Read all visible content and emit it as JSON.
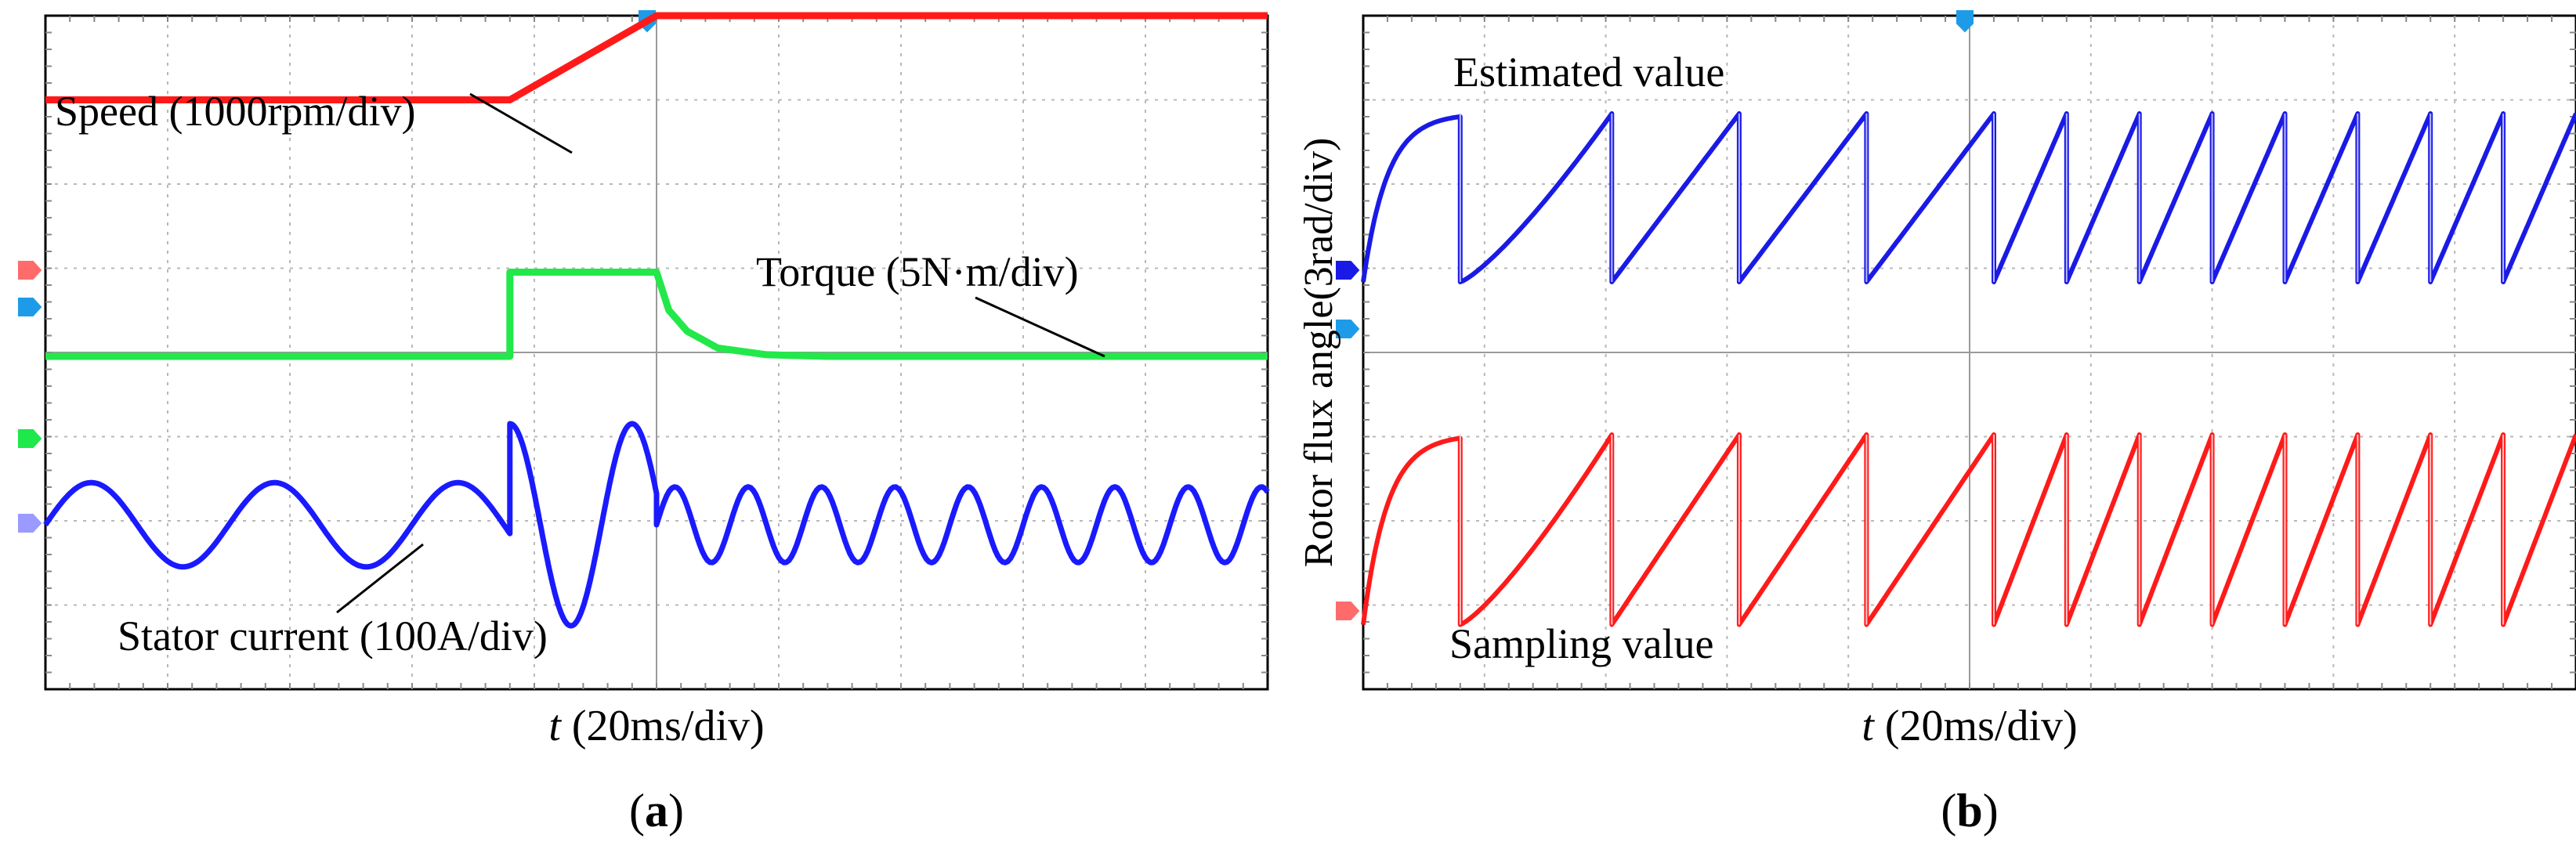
{
  "figure": {
    "panel_a_label": "a",
    "panel_b_label": "b"
  },
  "colors": {
    "speed": "#ff1a1a",
    "torque": "#22e84a",
    "current": "#1a1aff",
    "estimated": "#1a1ae6",
    "sampling": "#ff1a1a",
    "grid": "#b8b8b8",
    "marker_red": "#ff6b6b",
    "marker_blue": "#1e9be8",
    "marker_green": "#1ee84a",
    "marker_lavender": "#9a9aff"
  },
  "chart_data": [
    {
      "type": "line",
      "panel": "a",
      "xlabel_italic": "t",
      "xlabel": " (20ms/div)",
      "x_unit": "ms",
      "xlim": [
        0,
        200
      ],
      "grid": true,
      "divisions": {
        "x": 10,
        "y": 8
      },
      "annotations": [
        {
          "text": "Speed (1000rpm/div)",
          "series": "speed"
        },
        {
          "text": "Torque (5N·m/div)",
          "series": "torque"
        },
        {
          "text": "Stator current (100A/div)",
          "series": "stator_current"
        }
      ],
      "series": [
        {
          "id": "speed",
          "name": "Speed",
          "unit": "div",
          "points": [
            [
              0,
              1.0
            ],
            [
              76,
              1.0
            ],
            [
              100,
              2.0
            ],
            [
              200,
              2.0
            ]
          ]
        },
        {
          "id": "torque",
          "name": "Torque",
          "unit": "div",
          "points": [
            [
              0,
              0
            ],
            [
              76,
              0
            ],
            [
              76,
              1.0
            ],
            [
              100,
              1.0
            ],
            [
              102,
              0.55
            ],
            [
              105,
              0.3
            ],
            [
              110,
              0.1
            ],
            [
              118,
              0.02
            ],
            [
              128,
              0
            ],
            [
              200,
              0
            ]
          ]
        },
        {
          "id": "stator_current",
          "name": "Stator current",
          "unit": "div",
          "segments": [
            {
              "t_start": 0,
              "t_end": 76,
              "amplitude": 0.5,
              "period_ms": 30,
              "phase_deg": 0
            },
            {
              "t_start": 76,
              "t_end": 100,
              "amplitude": 1.2,
              "period_ms": 20,
              "phase_deg": 90
            },
            {
              "t_start": 100,
              "t_end": 200,
              "amplitude": 0.45,
              "period_ms": 12,
              "phase_deg": 0
            }
          ]
        }
      ]
    },
    {
      "type": "line",
      "panel": "b",
      "ylabel": "Rotor flux angle(3rad/div)",
      "xlabel_italic": "t",
      "xlabel": " (20ms/div)",
      "x_unit": "ms",
      "xlim": [
        0,
        200
      ],
      "grid": true,
      "divisions": {
        "x": 10,
        "y": 8
      },
      "annotations": [
        {
          "text": "Estimated value",
          "series": "estimated"
        },
        {
          "text": "Sampling value",
          "series": "sampling"
        }
      ],
      "series": [
        {
          "id": "estimated",
          "name": "Estimated value",
          "unit": "rad",
          "wrap_max": 6.28,
          "first_cycle_shape": "exponential",
          "reset_times_ms": [
            16,
            41,
            62,
            83,
            104,
            116,
            128,
            140,
            152,
            164,
            176,
            188,
            200
          ]
        },
        {
          "id": "sampling",
          "name": "Sampling value",
          "unit": "rad",
          "wrap_max": 6.28,
          "first_cycle_shape": "exponential",
          "reset_times_ms": [
            16,
            41,
            62,
            83,
            104,
            116,
            128,
            140,
            152,
            164,
            176,
            188,
            200
          ]
        }
      ]
    }
  ]
}
